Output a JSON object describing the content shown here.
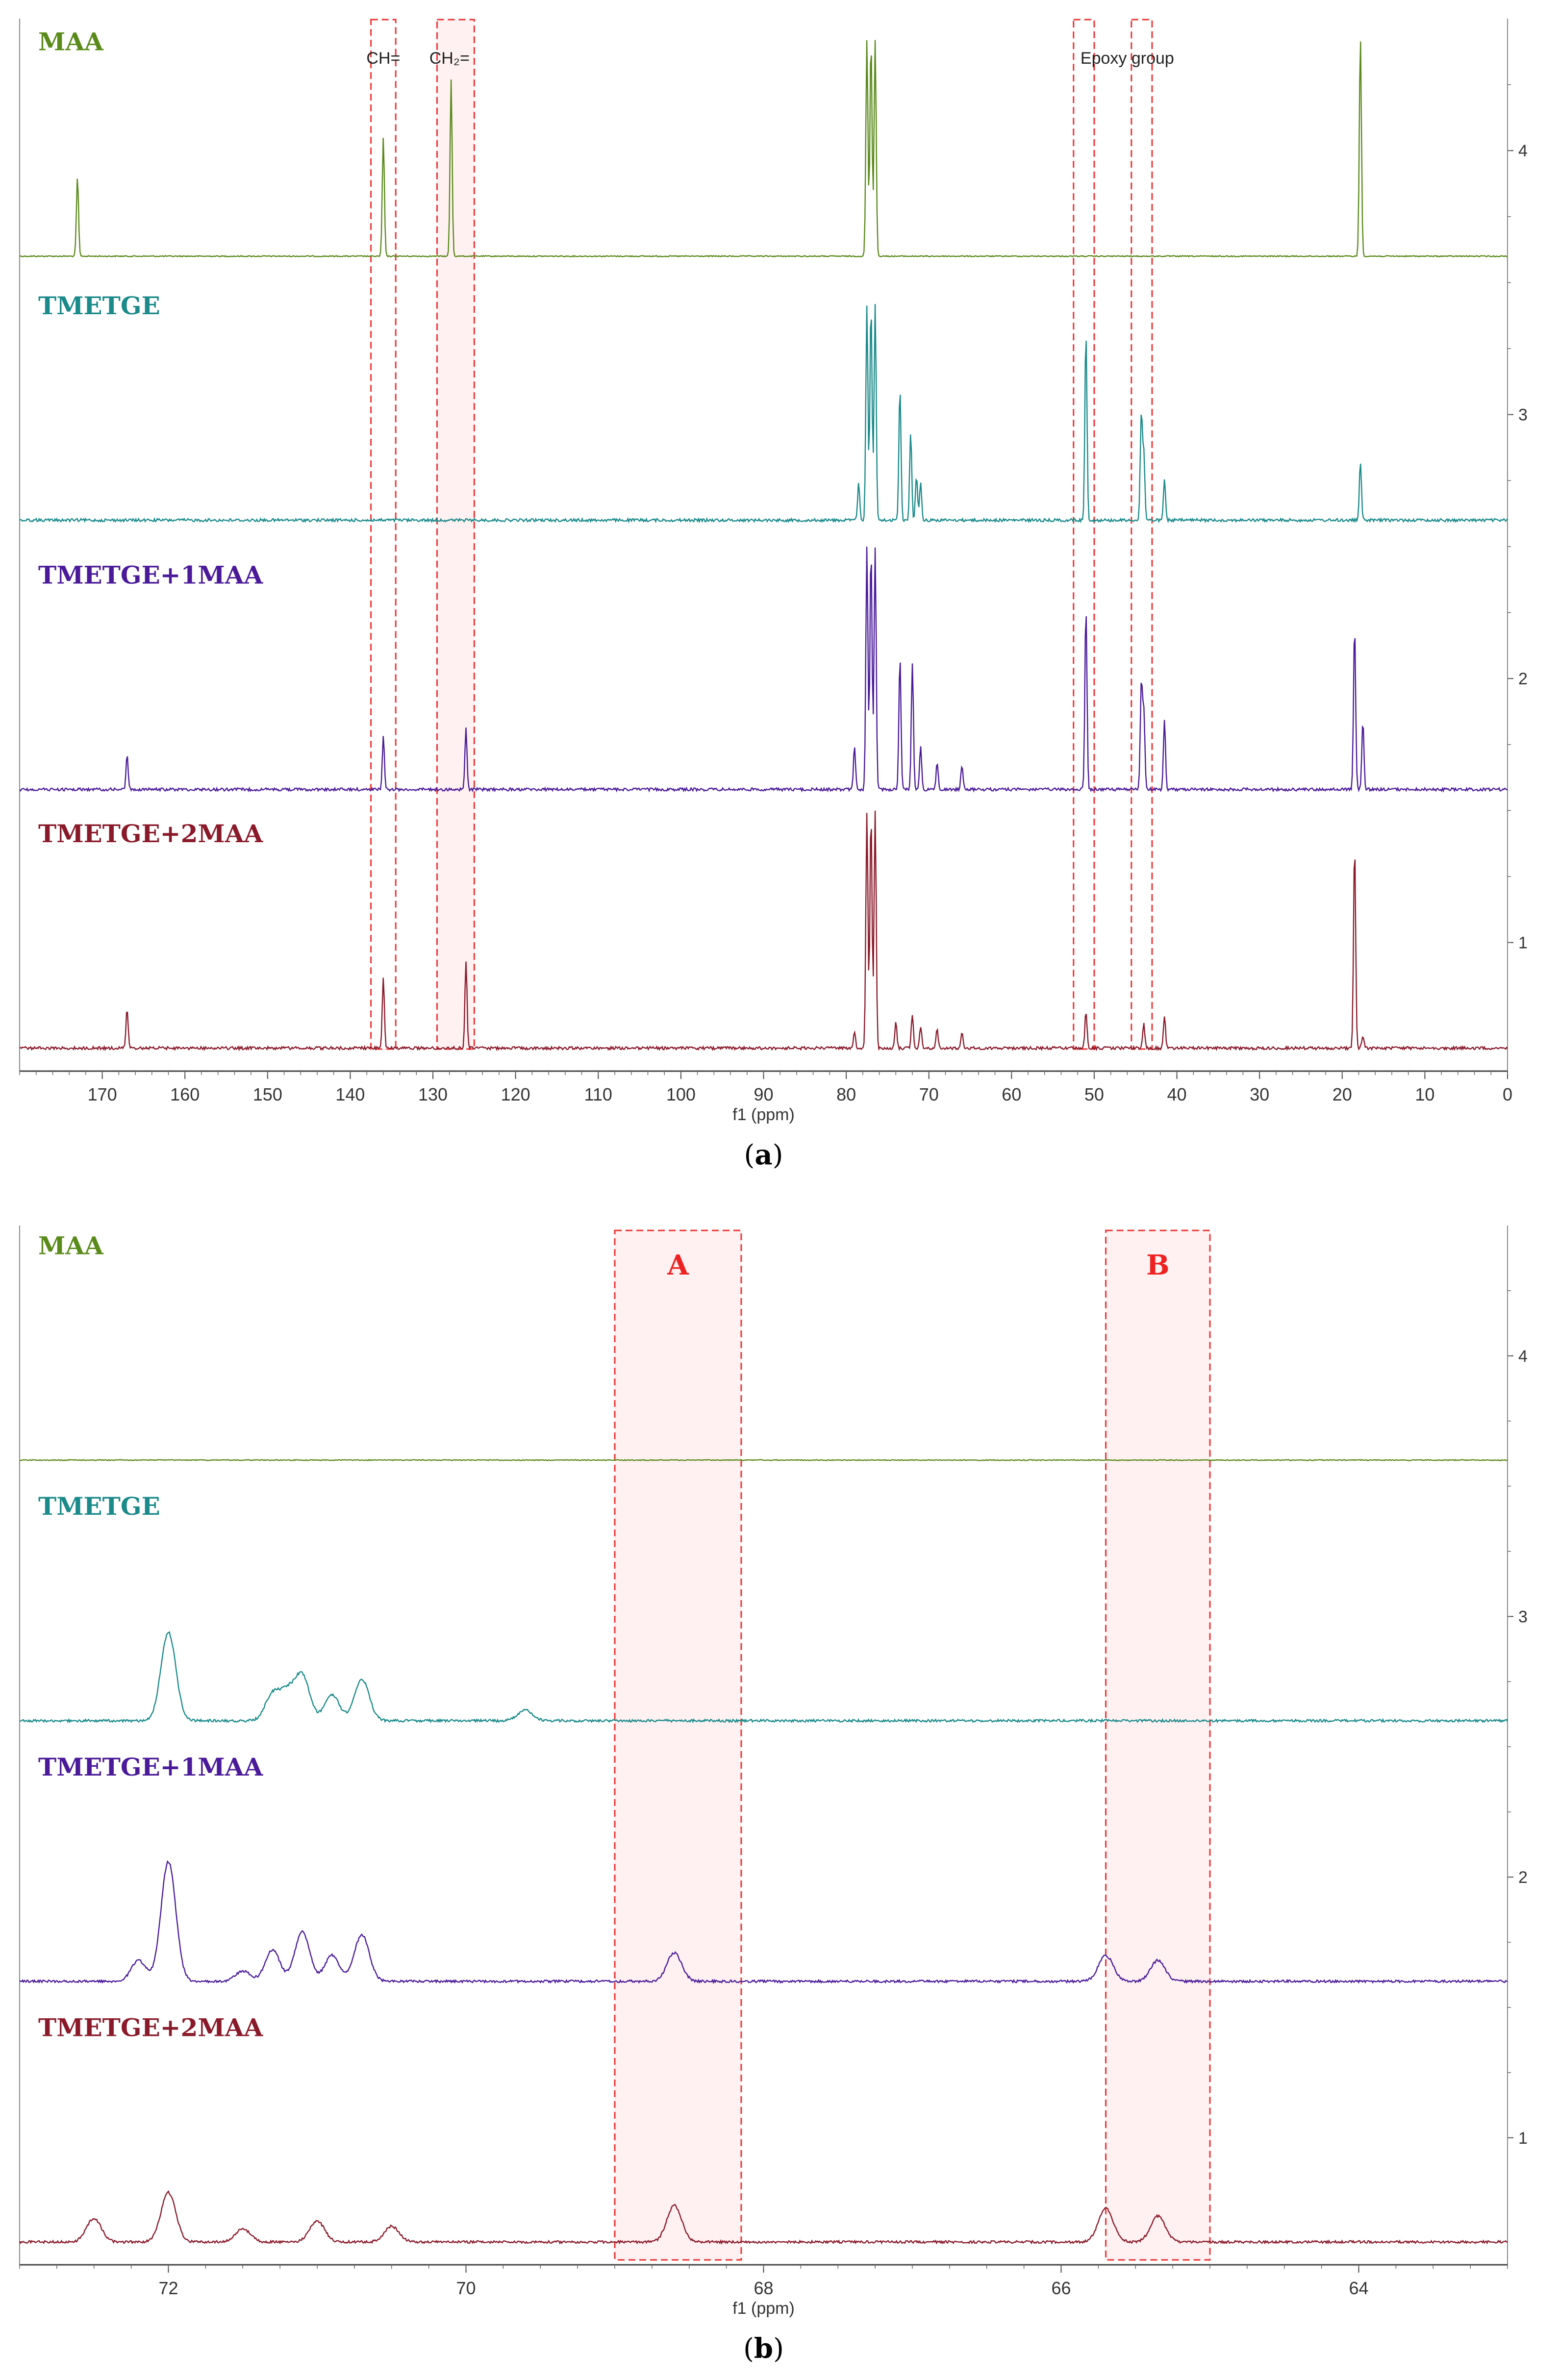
{
  "chart_data": [
    {
      "type": "line",
      "panel_label": "a",
      "xlabel": "f1 (ppm)",
      "xlim": [
        180,
        0
      ],
      "x_ticks": [
        170,
        160,
        150,
        140,
        130,
        120,
        110,
        100,
        90,
        80,
        70,
        60,
        50,
        40,
        30,
        20,
        10,
        0
      ],
      "y_ticks": [
        1,
        2,
        3,
        4
      ],
      "ylim": [
        0.55,
        4.5
      ],
      "annotations": [
        {
          "text": "CH=",
          "x": 136
        },
        {
          "text": "CH₂=",
          "x": 128
        },
        {
          "text": "Epoxy group",
          "x": 46
        }
      ],
      "highlight_regions": [
        {
          "from": 137.5,
          "to": 134.5,
          "style": "dashed"
        },
        {
          "from": 129.5,
          "to": 125.0,
          "style": "shaded"
        },
        {
          "from": 52.5,
          "to": 50.0,
          "style": "dashed"
        },
        {
          "from": 45.5,
          "to": 43.0,
          "style": "dashed"
        }
      ],
      "series": [
        {
          "name": "MAA",
          "color": "#5a8a1a",
          "baseline": 3.6,
          "peaks": [
            [
              173.0,
              3.9
            ],
            [
              136.0,
              4.05
            ],
            [
              127.8,
              4.27
            ],
            [
              77.5,
              4.42
            ],
            [
              77.0,
              4.42
            ],
            [
              76.5,
              4.42
            ],
            [
              17.8,
              4.43
            ]
          ]
        },
        {
          "name": "TMETGE",
          "color": "#1a8a8a",
          "baseline": 2.6,
          "peaks": [
            [
              78.5,
              2.74
            ],
            [
              77.5,
              3.42
            ],
            [
              77.0,
              3.42
            ],
            [
              76.5,
              3.42
            ],
            [
              73.5,
              3.1
            ],
            [
              72.2,
              2.93
            ],
            [
              71.5,
              2.77
            ],
            [
              71.0,
              2.74
            ],
            [
              51.0,
              3.31
            ],
            [
              44.3,
              3.0
            ],
            [
              44.0,
              2.85
            ],
            [
              41.5,
              2.75
            ],
            [
              17.8,
              2.82
            ]
          ]
        },
        {
          "name": "TMETGE+1MAA",
          "color": "#4a1a9a",
          "baseline": 1.58,
          "peaks": [
            [
              167.0,
              1.71
            ],
            [
              136.0,
              1.78
            ],
            [
              126.0,
              1.81
            ],
            [
              79.0,
              1.74
            ],
            [
              77.5,
              2.5
            ],
            [
              77.0,
              2.5
            ],
            [
              76.5,
              2.5
            ],
            [
              73.5,
              2.08
            ],
            [
              72.0,
              2.06
            ],
            [
              71.0,
              1.74
            ],
            [
              69.0,
              1.68
            ],
            [
              66.0,
              1.67
            ],
            [
              51.0,
              2.27
            ],
            [
              44.3,
              1.98
            ],
            [
              44.0,
              1.88
            ],
            [
              41.5,
              1.84
            ],
            [
              18.5,
              2.2
            ],
            [
              17.5,
              1.84
            ]
          ]
        },
        {
          "name": "TMETGE+2MAA",
          "color": "#8a1a2a",
          "baseline": 0.6,
          "peaks": [
            [
              167.0,
              0.75
            ],
            [
              136.0,
              0.87
            ],
            [
              126.0,
              0.93
            ],
            [
              79.0,
              0.66
            ],
            [
              77.5,
              1.5
            ],
            [
              77.0,
              1.5
            ],
            [
              76.5,
              1.5
            ],
            [
              74.0,
              0.7
            ],
            [
              72.0,
              0.73
            ],
            [
              71.0,
              0.68
            ],
            [
              69.0,
              0.67
            ],
            [
              66.0,
              0.66
            ],
            [
              51.0,
              0.74
            ],
            [
              44.0,
              0.69
            ],
            [
              41.5,
              0.72
            ],
            [
              18.5,
              1.37
            ],
            [
              17.5,
              0.65
            ]
          ]
        }
      ]
    },
    {
      "type": "line",
      "panel_label": "b",
      "xlabel": "f1 (ppm)",
      "xlim": [
        73,
        63
      ],
      "x_ticks": [
        72,
        70,
        68,
        66,
        64
      ],
      "y_ticks": [
        1,
        2,
        3,
        4
      ],
      "ylim": [
        0.55,
        4.5
      ],
      "highlight_regions": [
        {
          "label": "A",
          "from": 69.0,
          "to": 68.15
        },
        {
          "label": "B",
          "from": 65.7,
          "to": 65.0
        }
      ],
      "series": [
        {
          "name": "MAA",
          "color": "#5a8a1a",
          "baseline": 3.6,
          "peaks": []
        },
        {
          "name": "TMETGE",
          "color": "#1a8a8a",
          "baseline": 2.6,
          "peaks": [
            [
              72.0,
              2.94
            ],
            [
              71.3,
              2.7
            ],
            [
              71.2,
              2.7
            ],
            [
              71.1,
              2.77
            ],
            [
              70.9,
              2.7
            ],
            [
              70.7,
              2.76
            ],
            [
              69.6,
              2.64
            ]
          ]
        },
        {
          "name": "TMETGE+1MAA",
          "color": "#4a1a9a",
          "baseline": 1.6,
          "peaks": [
            [
              72.2,
              1.68
            ],
            [
              72.0,
              2.06
            ],
            [
              71.5,
              1.64
            ],
            [
              71.3,
              1.72
            ],
            [
              71.1,
              1.79
            ],
            [
              70.9,
              1.7
            ],
            [
              70.7,
              1.78
            ],
            [
              68.6,
              1.71
            ],
            [
              65.7,
              1.7
            ],
            [
              65.35,
              1.68
            ]
          ]
        },
        {
          "name": "TMETGE+2MAA",
          "color": "#8a1a2a",
          "baseline": 0.6,
          "peaks": [
            [
              72.5,
              0.69
            ],
            [
              72.0,
              0.79
            ],
            [
              71.5,
              0.65
            ],
            [
              71.0,
              0.68
            ],
            [
              70.5,
              0.66
            ],
            [
              68.6,
              0.74
            ],
            [
              65.7,
              0.73
            ],
            [
              65.35,
              0.7
            ]
          ]
        }
      ]
    }
  ]
}
